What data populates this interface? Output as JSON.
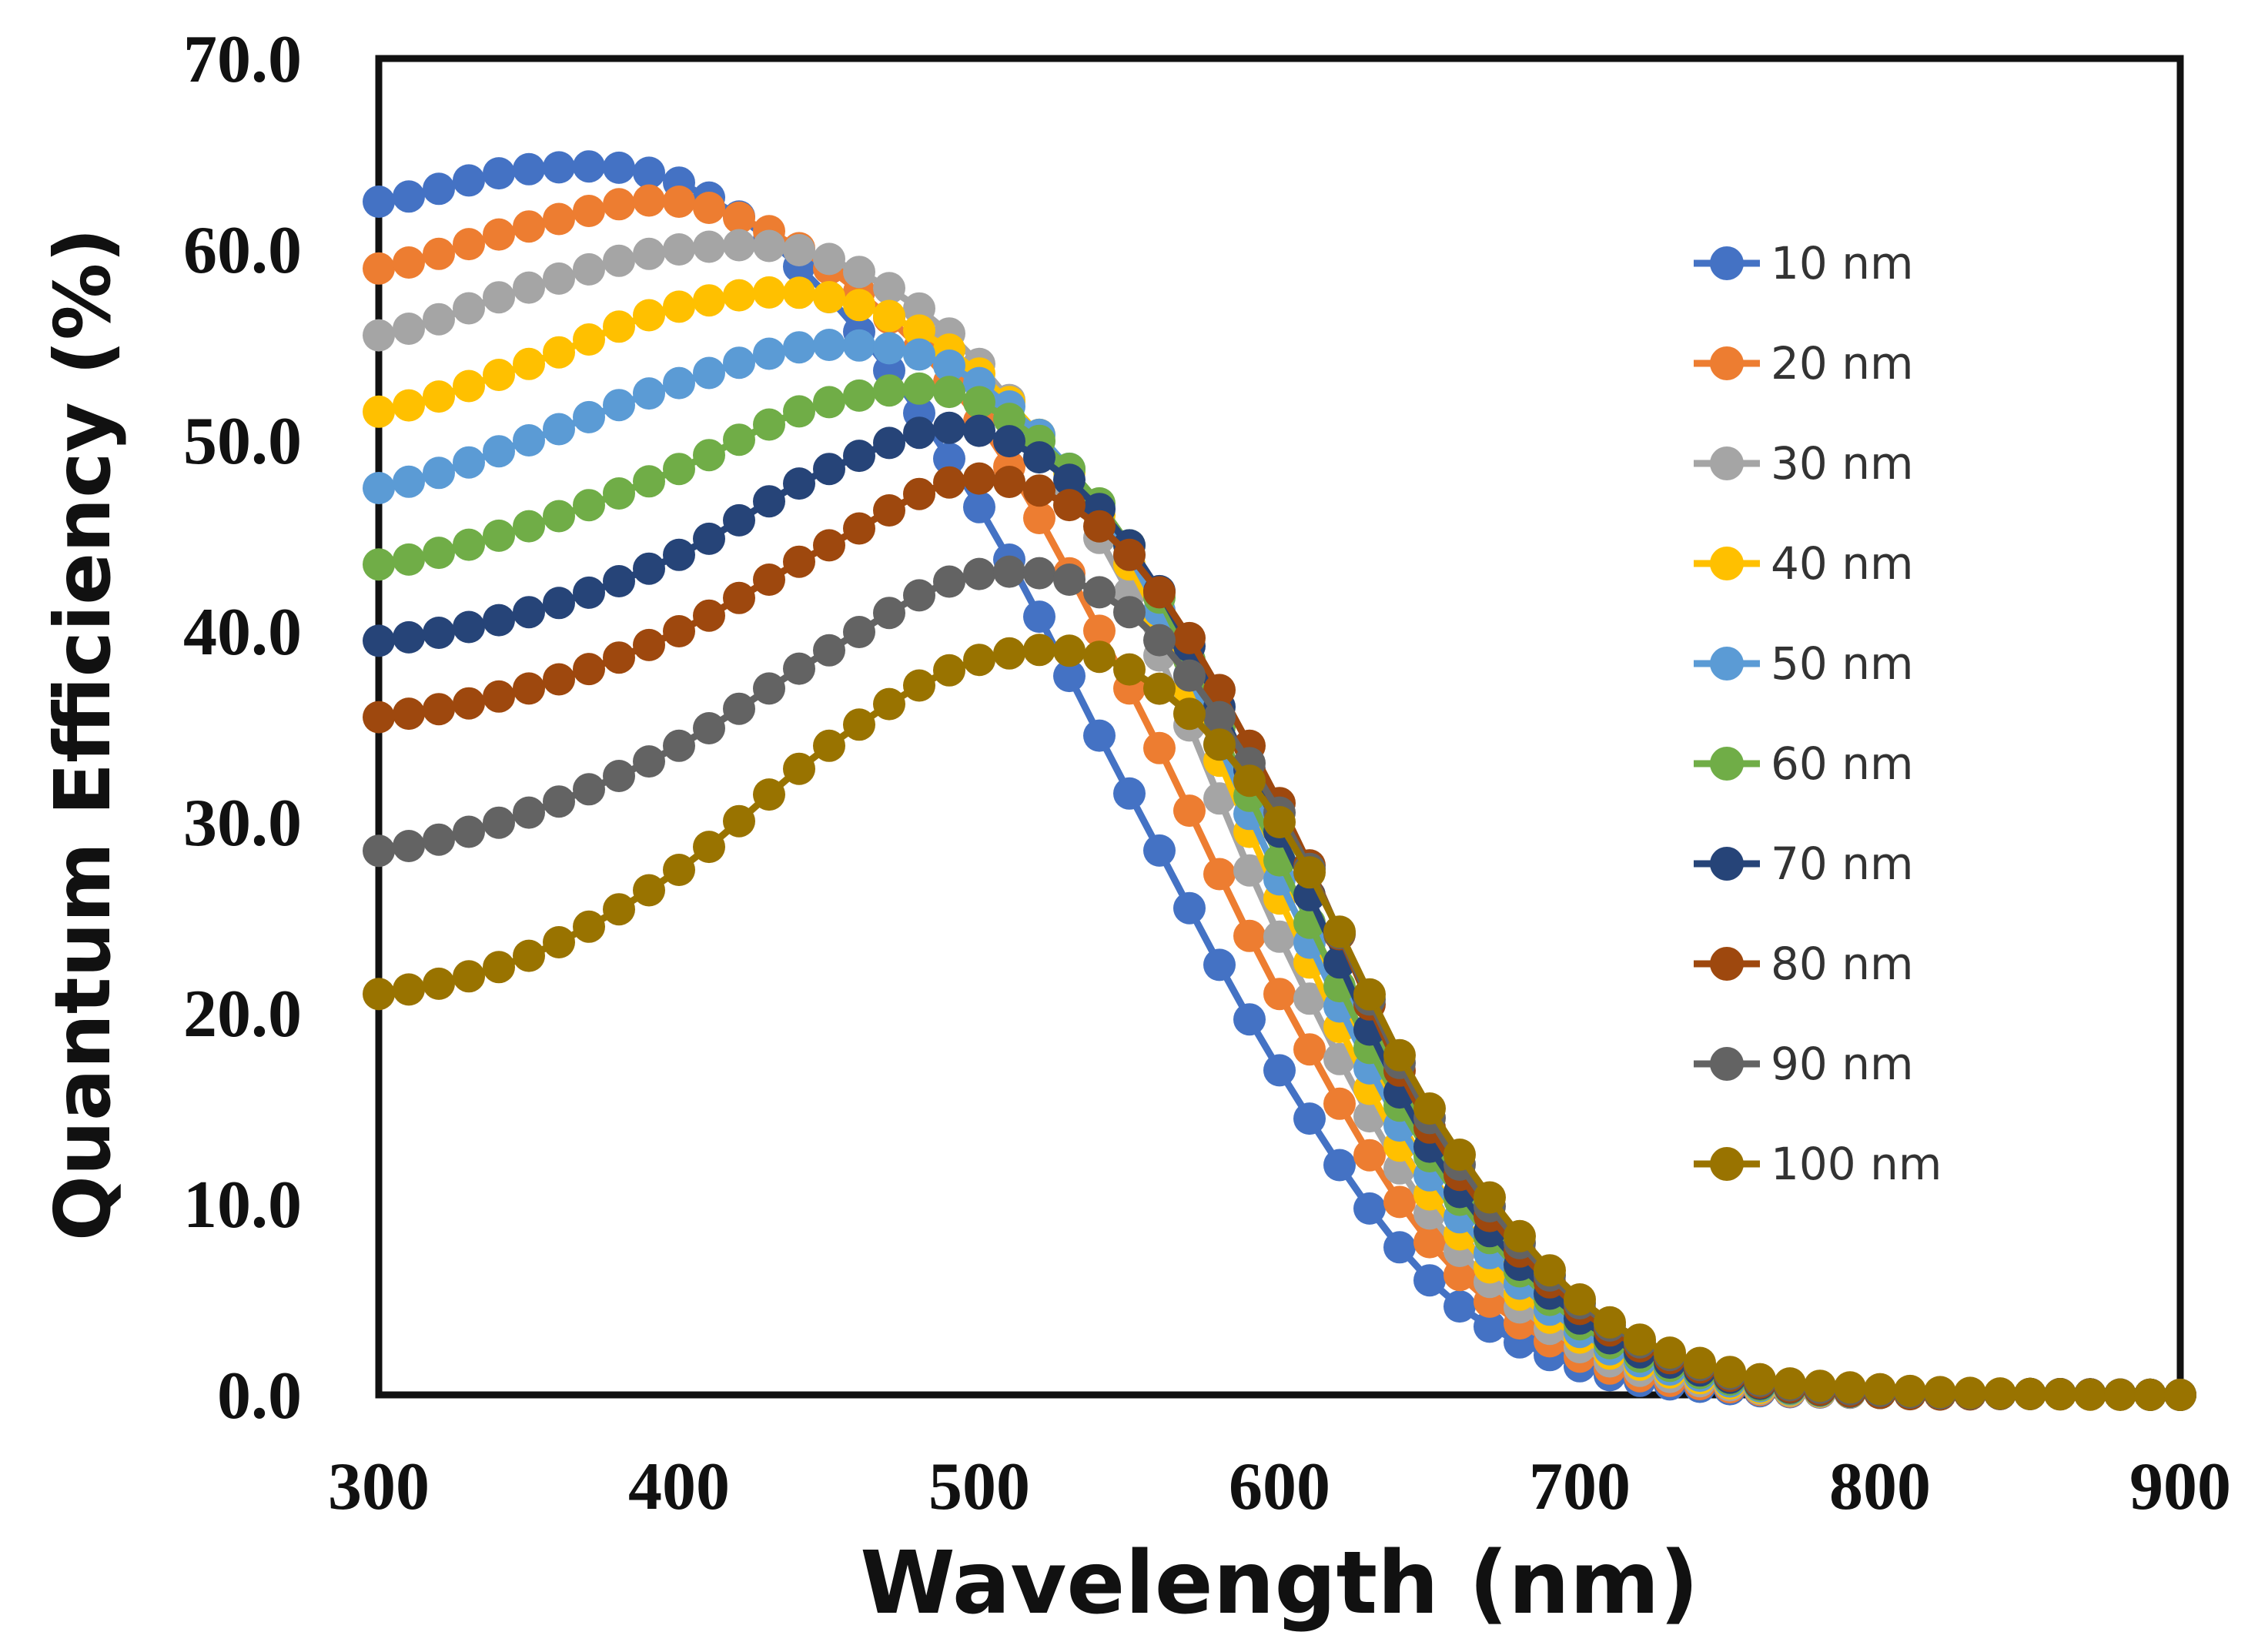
{
  "chart_data": {
    "type": "line",
    "title": "",
    "xlabel": "Wavelength (nm)",
    "ylabel": "Quantum Efficiency (%)",
    "xlim": [
      300,
      900
    ],
    "ylim": [
      0,
      70
    ],
    "grid": false,
    "legend_position": "right",
    "x_ticks": [
      "300",
      "400",
      "500",
      "600",
      "700",
      "800",
      "900"
    ],
    "y_ticks": [
      "0.0",
      "10.0",
      "20.0",
      "30.0",
      "40.0",
      "50.0",
      "60.0",
      "70.0"
    ],
    "x": [
      300,
      350,
      400,
      450,
      500,
      550,
      600,
      650,
      700,
      750,
      800,
      850,
      900
    ],
    "series": [
      {
        "name": "10 nm",
        "color": "#4472C4",
        "values": [
          62.5,
          64.2,
          63.5,
          57.5,
          46.5,
          31.5,
          17.0,
          6.0,
          1.5,
          0.3,
          0.1,
          0.05,
          0.0
        ]
      },
      {
        "name": "20 nm",
        "color": "#ED7D31",
        "values": [
          59.0,
          61.2,
          62.5,
          59.0,
          51.0,
          37.0,
          21.0,
          8.0,
          2.0,
          0.4,
          0.1,
          0.05,
          0.0
        ]
      },
      {
        "name": "30 nm",
        "color": "#A5A5A5",
        "values": [
          55.5,
          58.0,
          60.0,
          59.5,
          54.0,
          42.0,
          24.0,
          9.5,
          2.5,
          0.5,
          0.1,
          0.05,
          0.0
        ]
      },
      {
        "name": "40 nm",
        "color": "#FFC000",
        "values": [
          51.5,
          54.0,
          57.0,
          57.5,
          53.5,
          43.5,
          26.0,
          10.5,
          3.0,
          0.6,
          0.1,
          0.05,
          0.0
        ]
      },
      {
        "name": "50 nm",
        "color": "#5B9BD5",
        "values": [
          47.5,
          50.0,
          53.0,
          55.0,
          53.0,
          44.0,
          27.0,
          11.5,
          3.3,
          0.7,
          0.1,
          0.05,
          0.0
        ]
      },
      {
        "name": "60 nm",
        "color": "#70AD47",
        "values": [
          43.5,
          45.5,
          48.5,
          52.0,
          52.0,
          44.5,
          28.0,
          12.5,
          3.7,
          0.8,
          0.1,
          0.05,
          0.0
        ]
      },
      {
        "name": "70 nm",
        "color": "#264478",
        "values": [
          39.5,
          41.0,
          44.0,
          48.5,
          50.5,
          44.5,
          29.5,
          13.0,
          4.0,
          0.9,
          0.1,
          0.05,
          0.0
        ]
      },
      {
        "name": "80 nm",
        "color": "#9E480E",
        "values": [
          35.5,
          37.0,
          40.0,
          44.5,
          48.0,
          44.0,
          31.0,
          14.0,
          4.5,
          1.0,
          0.1,
          0.05,
          0.0
        ]
      },
      {
        "name": "90 nm",
        "color": "#636363",
        "values": [
          28.5,
          30.5,
          34.0,
          39.0,
          43.0,
          41.0,
          30.5,
          14.5,
          4.8,
          1.1,
          0.2,
          0.05,
          0.0
        ]
      },
      {
        "name": "100 nm",
        "color": "#997300",
        "values": [
          21.0,
          23.0,
          27.5,
          34.0,
          38.5,
          38.0,
          30.0,
          15.0,
          5.0,
          1.2,
          0.3,
          0.05,
          0.0
        ]
      }
    ]
  }
}
